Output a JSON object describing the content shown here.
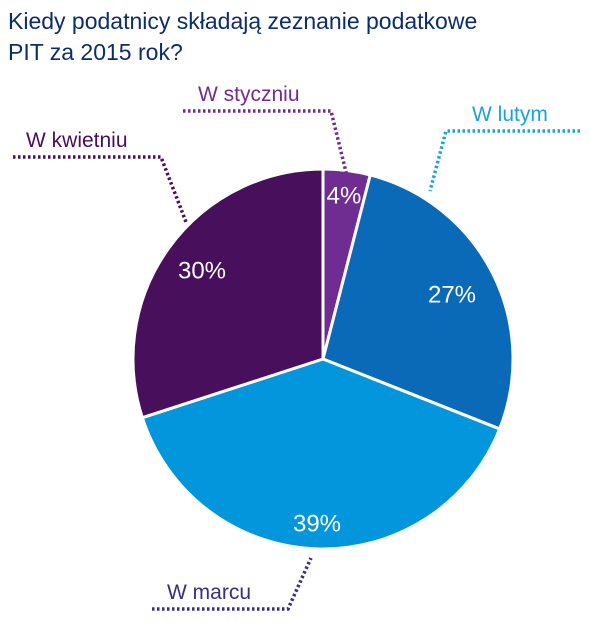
{
  "chart_data": {
    "type": "pie",
    "title": "Kiedy podatnicy składają zeznanie podatkowe PIT za 2015 rok?",
    "slices": [
      {
        "label": "W styczniu",
        "value": 4,
        "value_label": "4%",
        "color": "#6f2c91",
        "label_color": "#6f2c91"
      },
      {
        "label": "W lutym",
        "value": 27,
        "value_label": "27%",
        "color": "#0b6ab8",
        "label_color": "#1ba3d9"
      },
      {
        "label": "W marcu",
        "value": 39,
        "value_label": "39%",
        "color": "#0496dd",
        "label_color": "#3b2c85"
      },
      {
        "label": "W kwietniu",
        "value": 30,
        "value_label": "30%",
        "color": "#470f5c",
        "label_color": "#470f5c"
      }
    ],
    "start_angle": "12 o'clock",
    "direction": "clockwise"
  }
}
